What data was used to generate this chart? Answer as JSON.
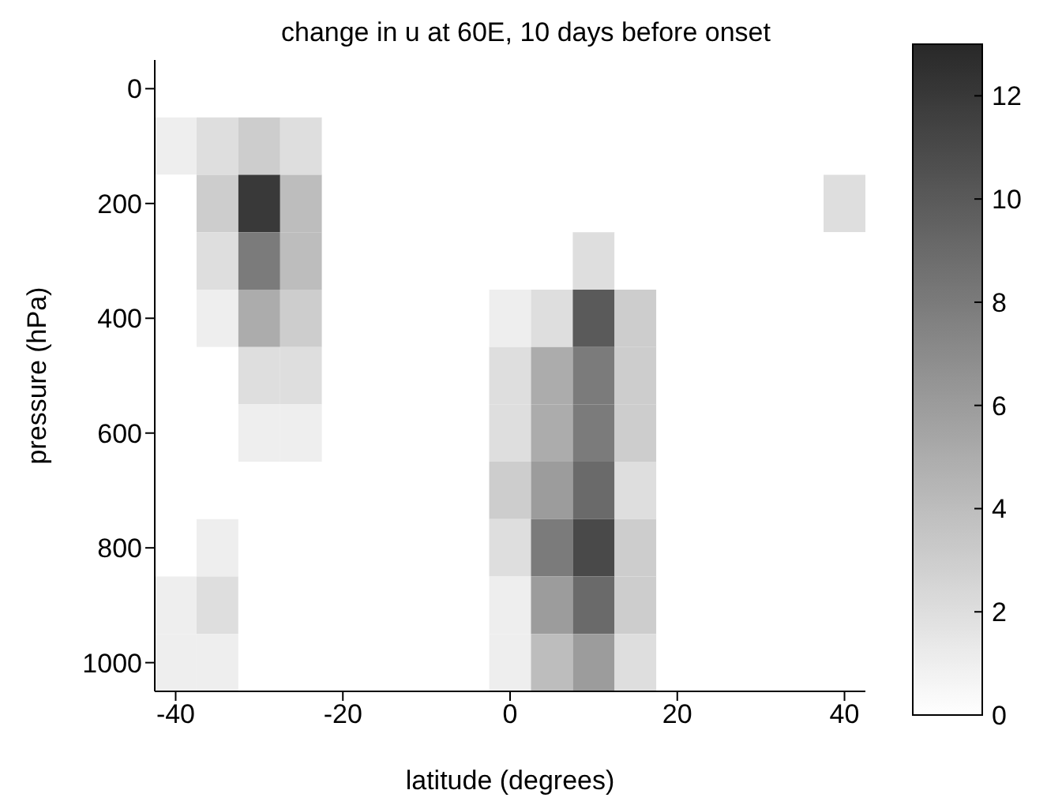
{
  "chart_data": {
    "type": "heatmap",
    "title": "change in u at 60E, 10 days before onset",
    "xlabel": "latitude (degrees)",
    "ylabel": "pressure (hPa)",
    "categories": [
      "-40",
      null,
      null,
      null,
      "-20",
      null,
      null,
      null,
      "0",
      null,
      null,
      null,
      "20",
      null,
      null,
      null,
      "40"
    ],
    "y_categories": [
      "0",
      null,
      "200",
      null,
      "400",
      null,
      "600",
      null,
      "800",
      null,
      "1000"
    ],
    "clim": [
      0,
      13
    ],
    "cticks": [
      0,
      2,
      4,
      6,
      8,
      10,
      12
    ],
    "cells": [
      [
        0,
        0,
        0,
        0,
        0,
        0,
        0,
        0,
        0,
        0,
        0,
        0,
        0,
        0,
        0,
        0,
        0
      ],
      [
        1,
        2,
        3,
        2,
        0,
        0,
        0,
        0,
        0,
        0,
        0,
        0,
        0,
        0,
        0,
        0,
        0
      ],
      [
        0,
        3,
        12,
        4,
        0,
        0,
        0,
        0,
        0,
        0,
        0,
        0,
        0,
        0,
        0,
        0,
        2
      ],
      [
        0,
        2,
        8,
        4,
        0,
        0,
        0,
        0,
        0,
        0,
        2,
        0,
        0,
        0,
        0,
        0,
        0
      ],
      [
        0,
        1,
        5,
        3,
        0,
        0,
        0,
        0,
        1,
        2,
        10,
        3,
        0,
        0,
        0,
        0,
        0
      ],
      [
        0,
        0,
        2,
        2,
        0,
        0,
        0,
        0,
        2,
        5,
        8,
        3,
        0,
        0,
        0,
        0,
        0
      ],
      [
        0,
        0,
        1,
        1,
        0,
        0,
        0,
        0,
        2,
        5,
        8,
        3,
        0,
        0,
        0,
        0,
        0
      ],
      [
        0,
        0,
        0,
        0,
        0,
        0,
        0,
        0,
        3,
        6,
        9,
        2,
        0,
        0,
        0,
        0,
        0
      ],
      [
        0,
        1,
        0,
        0,
        0,
        0,
        0,
        0,
        2,
        8,
        11,
        3,
        0,
        0,
        0,
        0,
        0
      ],
      [
        1,
        2,
        0,
        0,
        0,
        0,
        0,
        0,
        1,
        6,
        9,
        3,
        0,
        0,
        0,
        0,
        0
      ],
      [
        1,
        1,
        0,
        0,
        0,
        0,
        0,
        0,
        1,
        4,
        6,
        2,
        0,
        0,
        0,
        0,
        0
      ]
    ]
  }
}
